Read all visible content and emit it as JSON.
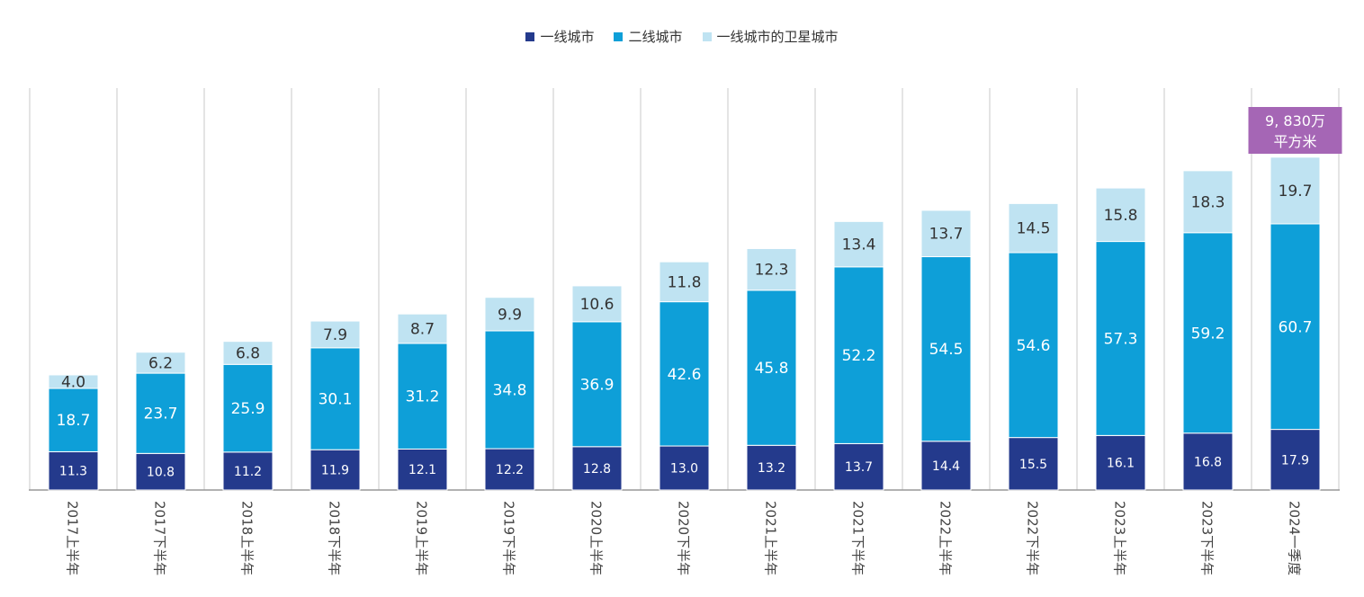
{
  "chart_data": {
    "type": "bar",
    "stacked": true,
    "categories": [
      "2017上半年",
      "2017下半年",
      "2018上半年",
      "2018下半年",
      "2019上半年",
      "2019下半年",
      "2020上半年",
      "2020下半年",
      "2021上半年",
      "2021下半年",
      "2022上半年",
      "2022下半年",
      "2023上半年",
      "2023下半年",
      "2024一季度"
    ],
    "series": [
      {
        "name": "一线城市",
        "color": "#243a8c",
        "values": [
          11.3,
          10.8,
          11.2,
          11.9,
          12.1,
          12.2,
          12.8,
          13.0,
          13.2,
          13.7,
          14.4,
          15.5,
          16.1,
          16.8,
          17.9
        ]
      },
      {
        "name": "二线城市",
        "color": "#0e9fd8",
        "values": [
          18.7,
          23.7,
          25.9,
          30.1,
          31.2,
          34.8,
          36.9,
          42.6,
          45.8,
          52.2,
          54.5,
          54.6,
          57.3,
          59.2,
          60.7
        ]
      },
      {
        "name": "一线城市的卫星城市",
        "color": "#bfe3f2",
        "values": [
          4.0,
          6.2,
          6.8,
          7.9,
          8.7,
          9.9,
          10.6,
          11.8,
          12.3,
          13.4,
          13.7,
          14.5,
          15.8,
          18.3,
          19.7
        ]
      }
    ],
    "title": "",
    "xlabel": "",
    "ylabel": "",
    "ylim": [
      0,
      112
    ],
    "legend_position": "top-center",
    "annotation": {
      "category": "2024一季度",
      "text_line1": "9, 830万",
      "text_line2": "平方米",
      "color": "#a566b5"
    }
  }
}
